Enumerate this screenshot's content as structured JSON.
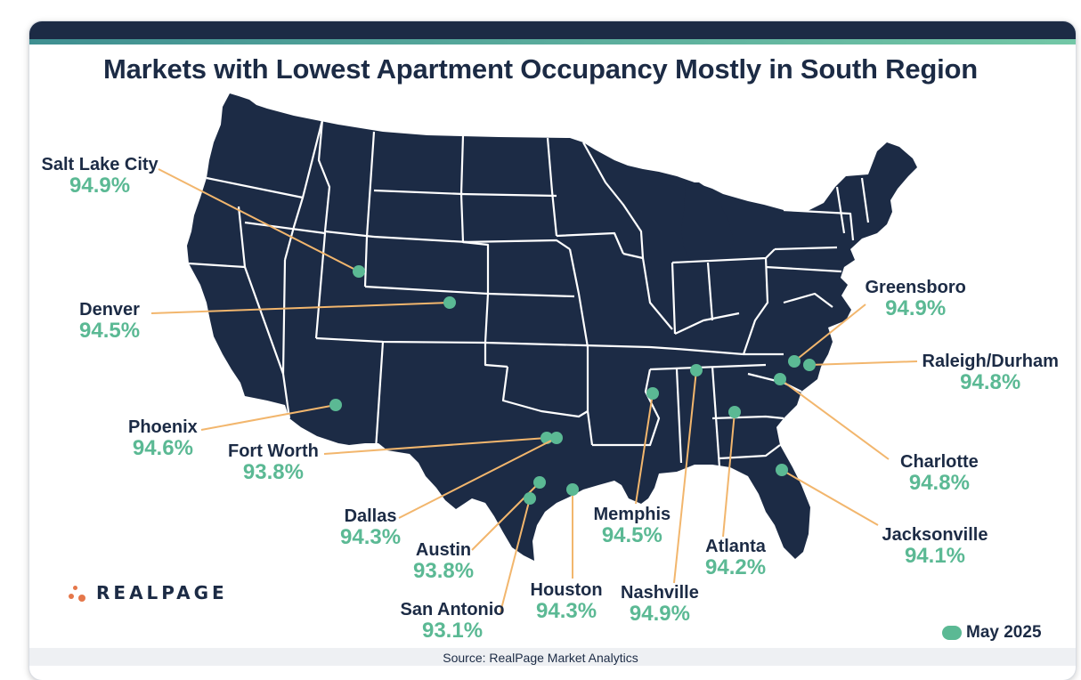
{
  "title": "Markets with Lowest Apartment Occupancy Mostly in South Region",
  "source": "Source: RealPage Market Analytics",
  "logo_text": "REALPAGE",
  "legend": {
    "label": "May 2025",
    "color": "#5bb994"
  },
  "colors": {
    "map_fill": "#1c2b45",
    "state_border": "#ffffff",
    "marker": "#5bb994",
    "leader_line": "#f2b66d",
    "value_text": "#5bb994",
    "name_text": "#1c2b45"
  },
  "markets": [
    {
      "name": "Salt Lake City",
      "occupancy": "94.9%"
    },
    {
      "name": "Denver",
      "occupancy": "94.5%"
    },
    {
      "name": "Phoenix",
      "occupancy": "94.6%"
    },
    {
      "name": "Fort Worth",
      "occupancy": "93.8%"
    },
    {
      "name": "Dallas",
      "occupancy": "94.3%"
    },
    {
      "name": "Austin",
      "occupancy": "93.8%"
    },
    {
      "name": "San Antonio",
      "occupancy": "93.1%"
    },
    {
      "name": "Houston",
      "occupancy": "94.3%"
    },
    {
      "name": "Memphis",
      "occupancy": "94.5%"
    },
    {
      "name": "Nashville",
      "occupancy": "94.9%"
    },
    {
      "name": "Atlanta",
      "occupancy": "94.2%"
    },
    {
      "name": "Jacksonville",
      "occupancy": "94.1%"
    },
    {
      "name": "Charlotte",
      "occupancy": "94.8%"
    },
    {
      "name": "Raleigh/Durham",
      "occupancy": "94.8%"
    },
    {
      "name": "Greensboro",
      "occupancy": "94.9%"
    }
  ]
}
